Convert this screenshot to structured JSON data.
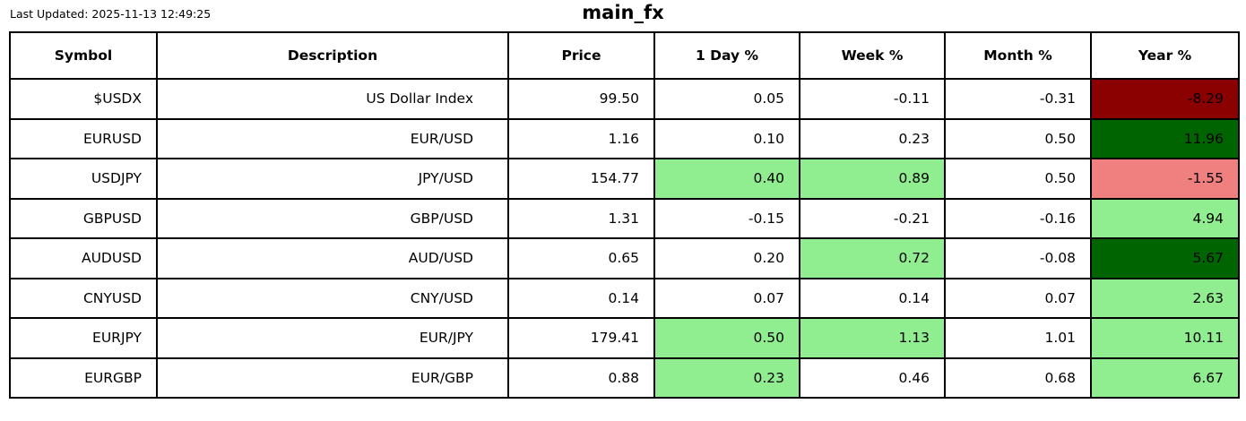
{
  "meta": {
    "last_updated": "Last Updated: 2025-11-13 12:49:25",
    "title": "main_fx"
  },
  "colors": {
    "white": "#ffffff",
    "lightgreen": "#90EE90",
    "darkgreen": "#006400",
    "lightcoral": "#F08080",
    "darkred": "#8B0000",
    "border": "#000000",
    "text": "#000000"
  },
  "chart_data": {
    "type": "table",
    "title": "main_fx",
    "columns": [
      "Symbol",
      "Description",
      "Price",
      "1 Day %",
      "Week %",
      "Month %",
      "Year %"
    ],
    "rows": [
      {
        "cells": [
          {
            "text": "$USDX",
            "bg": "white"
          },
          {
            "text": "US Dollar Index",
            "bg": "white"
          },
          {
            "text": "99.50",
            "bg": "white"
          },
          {
            "text": "0.05",
            "bg": "white"
          },
          {
            "text": "-0.11",
            "bg": "white"
          },
          {
            "text": "-0.31",
            "bg": "white"
          },
          {
            "text": "-8.29",
            "bg": "darkred"
          }
        ]
      },
      {
        "cells": [
          {
            "text": "EURUSD",
            "bg": "white"
          },
          {
            "text": "EUR/USD",
            "bg": "white"
          },
          {
            "text": "1.16",
            "bg": "white"
          },
          {
            "text": "0.10",
            "bg": "white"
          },
          {
            "text": "0.23",
            "bg": "white"
          },
          {
            "text": "0.50",
            "bg": "white"
          },
          {
            "text": "11.96",
            "bg": "darkgreen"
          }
        ]
      },
      {
        "cells": [
          {
            "text": "USDJPY",
            "bg": "white"
          },
          {
            "text": "JPY/USD",
            "bg": "white"
          },
          {
            "text": "154.77",
            "bg": "white"
          },
          {
            "text": "0.40",
            "bg": "lightgreen"
          },
          {
            "text": "0.89",
            "bg": "lightgreen"
          },
          {
            "text": "0.50",
            "bg": "white"
          },
          {
            "text": "-1.55",
            "bg": "lightcoral"
          }
        ]
      },
      {
        "cells": [
          {
            "text": "GBPUSD",
            "bg": "white"
          },
          {
            "text": "GBP/USD",
            "bg": "white"
          },
          {
            "text": "1.31",
            "bg": "white"
          },
          {
            "text": "-0.15",
            "bg": "white"
          },
          {
            "text": "-0.21",
            "bg": "white"
          },
          {
            "text": "-0.16",
            "bg": "white"
          },
          {
            "text": "4.94",
            "bg": "lightgreen"
          }
        ]
      },
      {
        "cells": [
          {
            "text": "AUDUSD",
            "bg": "white"
          },
          {
            "text": "AUD/USD",
            "bg": "white"
          },
          {
            "text": "0.65",
            "bg": "white"
          },
          {
            "text": "0.20",
            "bg": "white"
          },
          {
            "text": "0.72",
            "bg": "lightgreen"
          },
          {
            "text": "-0.08",
            "bg": "white"
          },
          {
            "text": "5.67",
            "bg": "darkgreen"
          }
        ]
      },
      {
        "cells": [
          {
            "text": "CNYUSD",
            "bg": "white"
          },
          {
            "text": "CNY/USD",
            "bg": "white"
          },
          {
            "text": "0.14",
            "bg": "white"
          },
          {
            "text": "0.07",
            "bg": "white"
          },
          {
            "text": "0.14",
            "bg": "white"
          },
          {
            "text": "0.07",
            "bg": "white"
          },
          {
            "text": "2.63",
            "bg": "lightgreen"
          }
        ]
      },
      {
        "cells": [
          {
            "text": "EURJPY",
            "bg": "white"
          },
          {
            "text": "EUR/JPY",
            "bg": "white"
          },
          {
            "text": "179.41",
            "bg": "white"
          },
          {
            "text": "0.50",
            "bg": "lightgreen"
          },
          {
            "text": "1.13",
            "bg": "lightgreen"
          },
          {
            "text": "1.01",
            "bg": "white"
          },
          {
            "text": "10.11",
            "bg": "lightgreen"
          }
        ]
      },
      {
        "cells": [
          {
            "text": "EURGBP",
            "bg": "white"
          },
          {
            "text": "EUR/GBP",
            "bg": "white"
          },
          {
            "text": "0.88",
            "bg": "white"
          },
          {
            "text": "0.23",
            "bg": "lightgreen"
          },
          {
            "text": "0.46",
            "bg": "white"
          },
          {
            "text": "0.68",
            "bg": "white"
          },
          {
            "text": "6.67",
            "bg": "lightgreen"
          }
        ]
      }
    ]
  }
}
